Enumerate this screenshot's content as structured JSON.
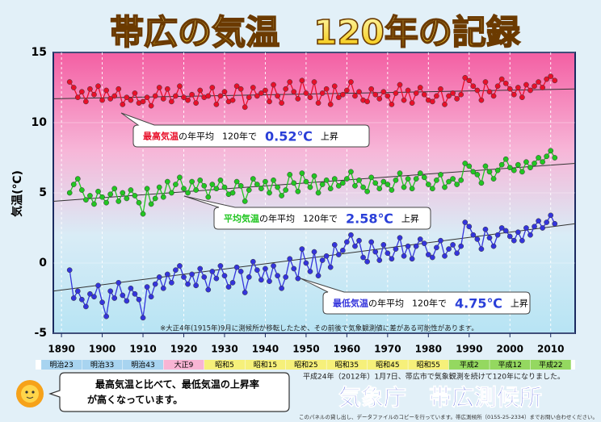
{
  "chart_data": {
    "type": "line",
    "title": "帯広の気温　120年の記録",
    "y_label": "気温(℃)",
    "note": "※大正4年(1915年)9月に測候所が移転したため、その前後で気象観測値に差がある可能性があります。",
    "xlim": [
      1888,
      2016
    ],
    "xticks": [
      1890,
      1900,
      1910,
      1920,
      1930,
      1940,
      1950,
      1960,
      1970,
      1980,
      1990,
      2000,
      2010
    ],
    "ylim": [
      -5,
      15
    ],
    "yticks": [
      -5,
      0,
      5,
      10,
      15
    ],
    "grid": true,
    "eras": [
      {
        "label": "明治23",
        "color": "#a8d4f0"
      },
      {
        "label": "明治33",
        "color": "#a8d4f0"
      },
      {
        "label": "明治43",
        "color": "#a8d4f0"
      },
      {
        "label": "大正9",
        "color": "#f8b4d4"
      },
      {
        "label": "昭和5",
        "color": "#f6f07a"
      },
      {
        "label": "昭和15",
        "color": "#f6f07a"
      },
      {
        "label": "昭和25",
        "color": "#f6f07a"
      },
      {
        "label": "昭和35",
        "color": "#f6f07a"
      },
      {
        "label": "昭和45",
        "color": "#f6f07a"
      },
      {
        "label": "昭和55",
        "color": "#f6f07a"
      },
      {
        "label": "平成2",
        "color": "#94d860"
      },
      {
        "label": "平成12",
        "color": "#94d860"
      },
      {
        "label": "平成22",
        "color": "#94d860"
      }
    ],
    "x": [
      1892,
      1893,
      1894,
      1895,
      1896,
      1897,
      1898,
      1899,
      1900,
      1901,
      1902,
      1903,
      1904,
      1905,
      1906,
      1907,
      1908,
      1909,
      1910,
      1911,
      1912,
      1913,
      1914,
      1915,
      1916,
      1917,
      1918,
      1919,
      1920,
      1921,
      1922,
      1923,
      1924,
      1925,
      1926,
      1927,
      1928,
      1929,
      1930,
      1931,
      1932,
      1933,
      1934,
      1935,
      1936,
      1937,
      1938,
      1939,
      1940,
      1941,
      1942,
      1943,
      1944,
      1945,
      1946,
      1947,
      1948,
      1949,
      1950,
      1951,
      1952,
      1953,
      1954,
      1955,
      1956,
      1957,
      1958,
      1959,
      1960,
      1961,
      1962,
      1963,
      1964,
      1965,
      1966,
      1967,
      1968,
      1969,
      1970,
      1971,
      1972,
      1973,
      1974,
      1975,
      1976,
      1977,
      1978,
      1979,
      1980,
      1981,
      1982,
      1983,
      1984,
      1985,
      1986,
      1987,
      1988,
      1989,
      1990,
      1991,
      1992,
      1993,
      1994,
      1995,
      1996,
      1997,
      1998,
      1999,
      2000,
      2001,
      2002,
      2003,
      2004,
      2005,
      2006,
      2007,
      2008,
      2009,
      2010,
      2011
    ],
    "series": [
      {
        "name": "最高気温",
        "color": "#e8102a",
        "trend": [
          11.7,
          12.4
        ],
        "callout": [
          "の年平均",
          "120年で",
          "0.52℃",
          "上昇"
        ],
        "values": [
          12.9,
          12.5,
          11.8,
          12.2,
          11.5,
          12.4,
          12.0,
          12.6,
          11.6,
          12.3,
          11.7,
          11.9,
          12.4,
          11.3,
          11.8,
          11.6,
          12.1,
          11.4,
          11.5,
          11.8,
          11.2,
          11.9,
          12.5,
          11.7,
          12.4,
          11.5,
          11.9,
          12.6,
          11.8,
          11.6,
          12.0,
          11.4,
          12.3,
          11.8,
          11.9,
          12.5,
          11.3,
          11.9,
          12.2,
          11.5,
          11.6,
          12.6,
          12.4,
          11.1,
          11.8,
          12.5,
          11.9,
          12.1,
          12.3,
          11.5,
          12.7,
          11.9,
          11.4,
          12.4,
          12.9,
          12.2,
          11.7,
          13.0,
          12.1,
          11.8,
          12.9,
          11.4,
          12.1,
          12.4,
          11.3,
          12.6,
          11.8,
          12.0,
          12.3,
          12.9,
          11.9,
          12.2,
          11.6,
          11.5,
          12.4,
          12.0,
          11.7,
          12.2,
          11.9,
          11.3,
          12.1,
          12.7,
          11.6,
          12.3,
          11.4,
          12.1,
          12.5,
          12.0,
          11.6,
          11.5,
          11.9,
          12.4,
          11.3,
          11.9,
          12.1,
          11.7,
          12.0,
          13.2,
          13.0,
          12.6,
          12.3,
          11.6,
          12.9,
          12.2,
          11.9,
          12.6,
          13.1,
          12.8,
          12.4,
          12.0,
          12.5,
          11.8,
          12.7,
          12.3,
          12.6,
          12.9,
          12.5,
          13.1,
          13.3,
          13.0
        ]
      },
      {
        "name": "平均気温",
        "color": "#22c622",
        "trend": [
          4.4,
          7.1
        ],
        "callout": [
          "の年平均",
          "120年で",
          "2.58℃",
          "上昇"
        ],
        "values": [
          5.0,
          5.6,
          6.0,
          5.2,
          4.5,
          4.8,
          4.2,
          5.1,
          4.7,
          4.3,
          4.9,
          5.3,
          4.4,
          5.0,
          4.6,
          5.2,
          4.8,
          4.3,
          3.5,
          5.3,
          4.2,
          4.6,
          5.4,
          4.7,
          5.8,
          5.0,
          5.6,
          6.1,
          5.3,
          5.0,
          5.8,
          5.2,
          5.9,
          5.5,
          4.7,
          5.6,
          5.3,
          5.9,
          5.4,
          4.9,
          5.0,
          5.8,
          5.5,
          4.4,
          5.2,
          6.0,
          5.6,
          5.3,
          5.8,
          5.0,
          5.9,
          5.4,
          4.8,
          5.2,
          6.3,
          5.7,
          5.1,
          6.4,
          5.8,
          5.4,
          6.2,
          5.0,
          5.6,
          5.9,
          5.3,
          6.0,
          5.5,
          5.7,
          6.0,
          6.5,
          5.5,
          5.9,
          5.4,
          5.1,
          6.1,
          5.7,
          5.3,
          5.8,
          5.6,
          5.2,
          5.9,
          6.4,
          5.4,
          6.0,
          5.3,
          6.0,
          6.4,
          6.1,
          5.6,
          5.3,
          5.9,
          6.3,
          5.4,
          5.8,
          6.0,
          5.6,
          5.9,
          7.1,
          6.9,
          6.5,
          6.3,
          5.7,
          6.9,
          6.5,
          6.0,
          6.6,
          7.0,
          7.4,
          6.8,
          6.6,
          7.0,
          6.5,
          7.2,
          6.8,
          7.1,
          7.5,
          7.2,
          7.6,
          8.0,
          7.5
        ]
      },
      {
        "name": "最低気温",
        "color": "#3434dc",
        "trend": [
          -2.0,
          2.8
        ],
        "callout": [
          "の年平均",
          "120年で",
          "4.75℃",
          "上昇"
        ],
        "values": [
          -0.5,
          -2.5,
          -2.0,
          -2.6,
          -3.1,
          -2.2,
          -2.4,
          -1.6,
          -2.8,
          -3.8,
          -2.0,
          -2.5,
          -1.4,
          -2.3,
          -2.7,
          -1.8,
          -2.2,
          -2.6,
          -3.9,
          -1.7,
          -2.4,
          -1.5,
          -1.0,
          -1.8,
          -0.8,
          -1.4,
          -0.5,
          -0.2,
          -1.0,
          -1.5,
          -0.8,
          -1.6,
          -0.4,
          -1.0,
          -1.9,
          -0.6,
          -1.1,
          -0.2,
          -0.9,
          -1.7,
          -1.4,
          -0.3,
          -0.6,
          -2.1,
          -1.0,
          0.1,
          -0.5,
          -1.2,
          -0.4,
          -1.3,
          -0.2,
          -0.9,
          -1.8,
          -1.0,
          0.3,
          -0.4,
          -1.1,
          1.0,
          0.0,
          -0.6,
          0.8,
          -0.9,
          0.2,
          0.5,
          -0.3,
          1.3,
          0.6,
          0.9,
          1.5,
          2.0,
          1.2,
          1.6,
          0.4,
          0.1,
          1.5,
          0.8,
          0.2,
          1.3,
          0.7,
          0.3,
          1.0,
          1.8,
          0.5,
          1.2,
          0.3,
          1.2,
          1.7,
          1.4,
          0.6,
          0.4,
          1.1,
          1.6,
          0.5,
          1.0,
          1.3,
          0.7,
          1.2,
          2.9,
          2.6,
          2.0,
          1.7,
          1.0,
          2.4,
          1.8,
          1.2,
          2.0,
          2.5,
          2.3,
          1.9,
          1.6,
          2.2,
          1.6,
          2.5,
          2.0,
          2.6,
          3.0,
          2.5,
          2.9,
          3.4,
          2.8
        ]
      }
    ]
  },
  "panel": {
    "anniversary": "平成24年（2012年）1月7日、帯広市で気象観測を続けて120年になりました。",
    "bubble": [
      "最高気温と比べて、最低気温の上昇率",
      "が高くなっています。"
    ],
    "office": "気象庁　帯広測候所",
    "footer": "このパネルの貸し出し、データファイルのコピーを行っています。帯広測候所（0155-25-2334）までお問い合わせください。"
  }
}
